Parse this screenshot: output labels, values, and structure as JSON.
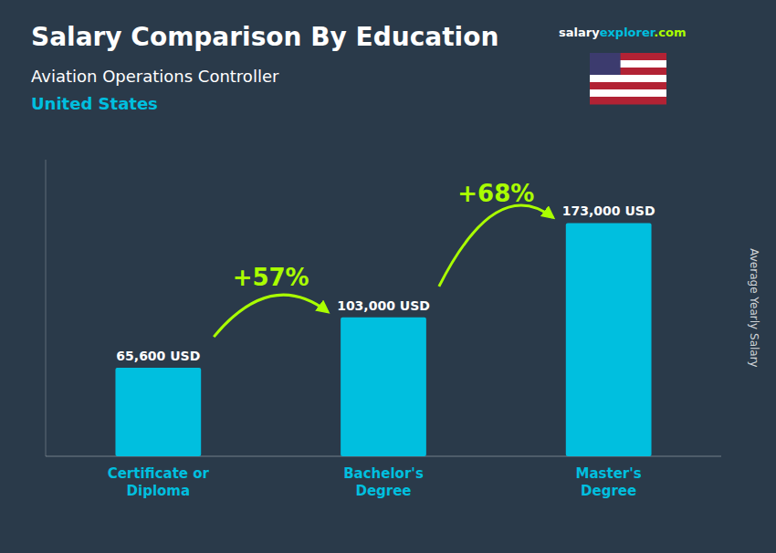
{
  "chart_data": {
    "type": "bar",
    "title": "Salary Comparison By Education",
    "subtitle": [
      "Aviation Operations Controller",
      "United States"
    ],
    "brand": [
      "salary",
      "explorer",
      ".com"
    ],
    "ylabel": "Average Yearly Salary",
    "categories": [
      "Certificate or\nDiploma",
      "Bachelor's\nDegree",
      "Master's\nDegree"
    ],
    "values": [
      65600,
      103000,
      173000
    ],
    "value_labels": [
      "65,600 USD",
      "103,000 USD",
      "173,000 USD"
    ],
    "data_labels": true,
    "annotations": [
      "+57%",
      "+68%"
    ],
    "color": "#00BFDF",
    "ylim": [
      0,
      220000
    ],
    "tick_labels": "x",
    "grid": false
  }
}
